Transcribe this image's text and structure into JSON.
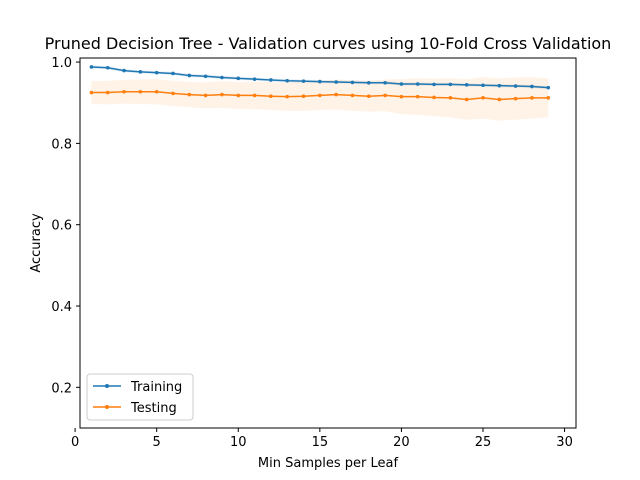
{
  "chart_data": {
    "type": "line",
    "title": "Pruned Decision Tree - Validation curves using 10-Fold Cross Validation",
    "xlabel": "Min Samples per Leaf",
    "ylabel": "Accuracy",
    "xlim": [
      0.3,
      30.7
    ],
    "ylim": [
      0.1,
      1.01
    ],
    "xticks": [
      0,
      5,
      10,
      15,
      20,
      25,
      30
    ],
    "yticks": [
      0.2,
      0.4,
      0.6,
      0.8,
      1.0
    ],
    "xtick_labels": [
      "0",
      "5",
      "10",
      "15",
      "20",
      "25",
      "30"
    ],
    "ytick_labels": [
      "0.2",
      "0.4",
      "0.6",
      "0.8",
      "1.0"
    ],
    "grid": false,
    "legend_position": "lower-left",
    "x": [
      1,
      2,
      3,
      4,
      5,
      6,
      7,
      8,
      9,
      10,
      11,
      12,
      13,
      14,
      15,
      16,
      17,
      18,
      19,
      20,
      21,
      22,
      23,
      24,
      25,
      26,
      27,
      28,
      29
    ],
    "series": [
      {
        "name": "Training",
        "color": "#1f77b4",
        "values": [
          0.988,
          0.986,
          0.979,
          0.976,
          0.974,
          0.972,
          0.967,
          0.965,
          0.962,
          0.96,
          0.958,
          0.956,
          0.954,
          0.953,
          0.952,
          0.951,
          0.95,
          0.949,
          0.949,
          0.946,
          0.946,
          0.945,
          0.945,
          0.944,
          0.943,
          0.942,
          0.941,
          0.94,
          0.937
        ],
        "band_lower": [
          0.984,
          0.982,
          0.975,
          0.972,
          0.97,
          0.968,
          0.963,
          0.961,
          0.958,
          0.956,
          0.954,
          0.952,
          0.95,
          0.949,
          0.948,
          0.947,
          0.946,
          0.945,
          0.945,
          0.942,
          0.942,
          0.941,
          0.941,
          0.94,
          0.939,
          0.938,
          0.937,
          0.936,
          0.933
        ],
        "band_upper": [
          0.992,
          0.99,
          0.983,
          0.98,
          0.978,
          0.976,
          0.971,
          0.969,
          0.966,
          0.964,
          0.962,
          0.96,
          0.958,
          0.957,
          0.956,
          0.955,
          0.954,
          0.953,
          0.953,
          0.95,
          0.95,
          0.949,
          0.949,
          0.948,
          0.947,
          0.946,
          0.945,
          0.944,
          0.941
        ]
      },
      {
        "name": "Testing",
        "color": "#ff7f0e",
        "values": [
          0.925,
          0.925,
          0.927,
          0.927,
          0.927,
          0.923,
          0.92,
          0.918,
          0.92,
          0.918,
          0.918,
          0.916,
          0.915,
          0.916,
          0.918,
          0.92,
          0.918,
          0.916,
          0.918,
          0.915,
          0.915,
          0.913,
          0.912,
          0.908,
          0.912,
          0.908,
          0.91,
          0.912,
          0.912
        ],
        "band_lower": [
          0.897,
          0.896,
          0.898,
          0.897,
          0.896,
          0.892,
          0.889,
          0.886,
          0.887,
          0.885,
          0.884,
          0.882,
          0.88,
          0.88,
          0.882,
          0.883,
          0.88,
          0.878,
          0.879,
          0.872,
          0.87,
          0.867,
          0.864,
          0.858,
          0.861,
          0.856,
          0.858,
          0.861,
          0.864
        ],
        "band_upper": [
          0.953,
          0.954,
          0.956,
          0.957,
          0.958,
          0.954,
          0.951,
          0.95,
          0.953,
          0.951,
          0.952,
          0.95,
          0.95,
          0.952,
          0.954,
          0.957,
          0.956,
          0.954,
          0.957,
          0.958,
          0.96,
          0.959,
          0.96,
          0.958,
          0.963,
          0.96,
          0.962,
          0.963,
          0.96
        ]
      }
    ]
  }
}
